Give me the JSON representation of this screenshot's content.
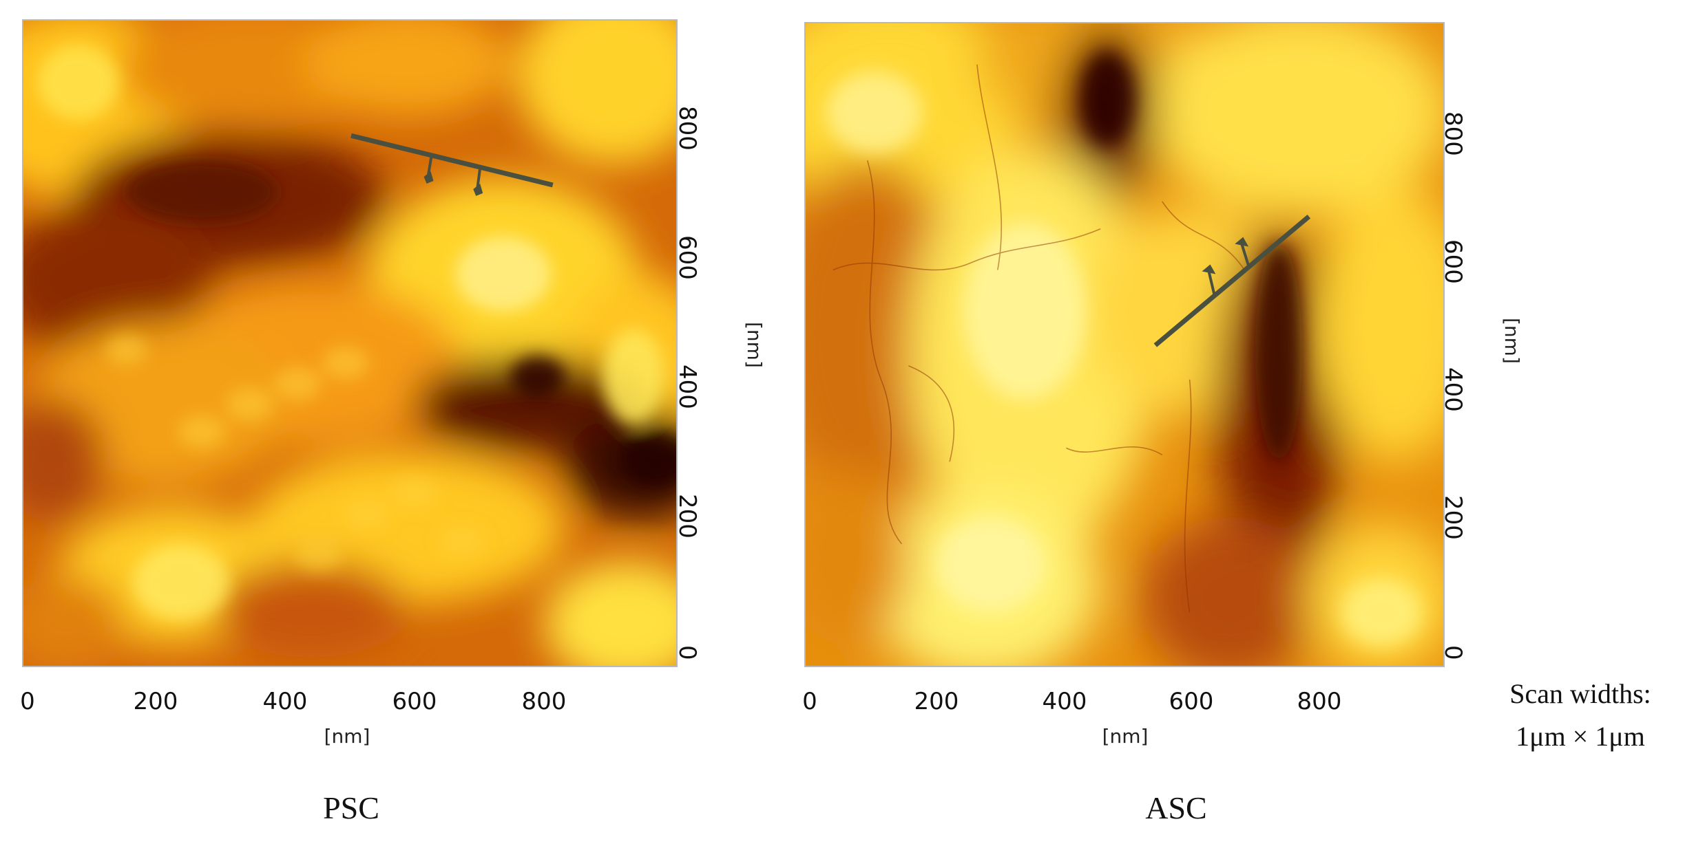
{
  "panels": [
    {
      "caption": "PSC",
      "x_ticks": [
        "0",
        "200",
        "400",
        "600",
        "800"
      ],
      "y_ticks": [
        "0",
        "200",
        "400",
        "600",
        "800"
      ],
      "x_unit": "[nm]",
      "y_unit": "[nm]",
      "colormap": "afm-hot"
    },
    {
      "caption": "ASC",
      "x_ticks": [
        "0",
        "200",
        "400",
        "600",
        "800"
      ],
      "y_ticks": [
        "0",
        "200",
        "400",
        "600",
        "800"
      ],
      "x_unit": "[nm]",
      "y_unit": "[nm]",
      "colormap": "afm-hot"
    }
  ],
  "note": {
    "line1": "Scan widths:",
    "line2": "1μm × 1μm"
  },
  "colors": {
    "dark": "#3b0a00",
    "mid": "#c45a00",
    "bright": "#ffe24a",
    "highlight": "#fff7a8",
    "profile_line": "#4a5040"
  }
}
